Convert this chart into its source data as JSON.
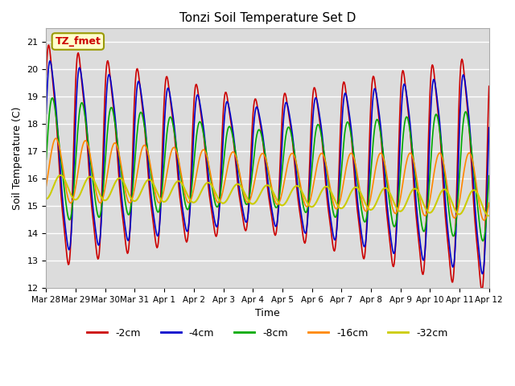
{
  "title": "Tonzi Soil Temperature Set D",
  "xlabel": "Time",
  "ylabel": "Soil Temperature (C)",
  "ylim": [
    12.0,
    21.5
  ],
  "yticks": [
    12.0,
    13.0,
    14.0,
    15.0,
    16.0,
    17.0,
    18.0,
    19.0,
    20.0,
    21.0
  ],
  "legend_labels": [
    "-2cm",
    "-4cm",
    "-8cm",
    "-16cm",
    "-32cm"
  ],
  "legend_colors": [
    "#cc0000",
    "#0000cc",
    "#00aa00",
    "#ff8800",
    "#cccc00"
  ],
  "annotation_text": "TZ_fmet",
  "annotation_bg": "#ffffcc",
  "annotation_border": "#999900",
  "plot_bg_color": "#dcdcdc",
  "fig_bg_color": "#ffffff",
  "num_points": 720,
  "start_day": 0,
  "end_day": 15.0,
  "xtick_positions": [
    0,
    1,
    2,
    3,
    4,
    5,
    6,
    7,
    8,
    9,
    10,
    11,
    12,
    13,
    14,
    15
  ],
  "xtick_labels": [
    "Mar 28",
    "Mar 29",
    "Mar 30",
    "Mar 31",
    "Apr 1",
    "Apr 2",
    "Apr 3",
    "Apr 4",
    "Apr 5",
    "Apr 6",
    "Apr 7",
    "Apr 8",
    "Apr 9",
    "Apr 10",
    "Apr 11",
    "Apr 12"
  ]
}
